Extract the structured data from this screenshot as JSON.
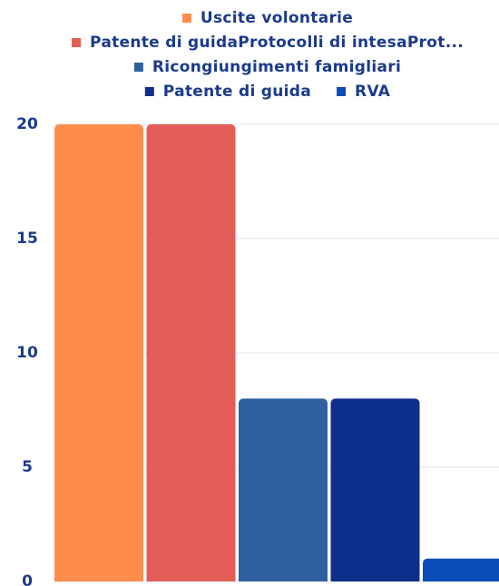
{
  "chart_data": {
    "type": "bar",
    "categories": [
      null
    ],
    "series": [
      {
        "name": "Uscite volontarie",
        "color": "#ff8c4b",
        "values": [
          20
        ]
      },
      {
        "name": "Patente di guidaProtocolli di intesaProt...",
        "color": "#e35d58",
        "values": [
          20
        ]
      },
      {
        "name": "Ricongiungimenti famigliari",
        "color": "#2f5f9f",
        "values": [
          8
        ]
      },
      {
        "name": "Patente di guida",
        "color": "#0e2f8b",
        "values": [
          8
        ]
      },
      {
        "name": "RVA",
        "color": "#0b4db8",
        "values": [
          1
        ]
      }
    ],
    "ylim": [
      0,
      20
    ],
    "yticks": [
      0,
      5,
      10,
      15,
      20
    ],
    "grid": true
  }
}
